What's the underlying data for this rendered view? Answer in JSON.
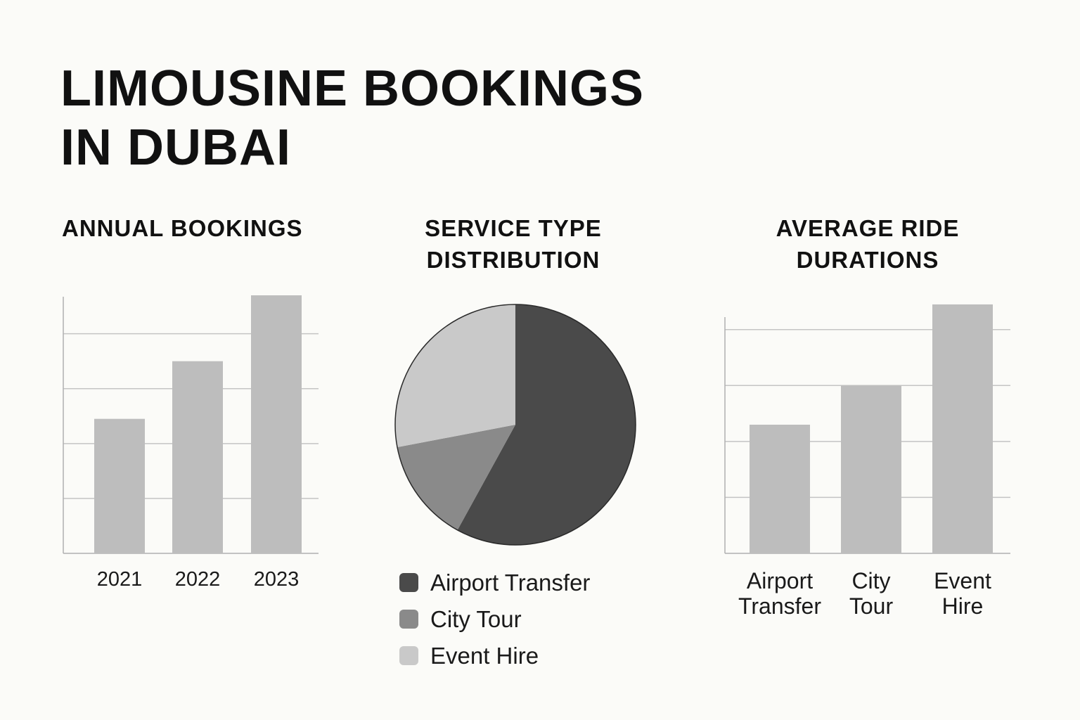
{
  "title_lines": [
    "LIMOUSINE BOOKINGS",
    "IN DUBAI"
  ],
  "colors": {
    "background": "#fbfbf8",
    "bar": "#bdbdbd",
    "grid": "#c4c4c4",
    "axis": "#b0b0b0",
    "airport_transfer": "#4a4a4a",
    "city_tour": "#8a8a8a",
    "event_hire": "#c9c9c9"
  },
  "chart_data": [
    {
      "type": "bar",
      "title_lines": [
        "ANNUAL BOOKINGS"
      ],
      "categories": [
        "2021",
        "2022",
        "2023"
      ],
      "values": [
        2.45,
        3.5,
        4.7
      ],
      "ylim": [
        0,
        4.7
      ],
      "yticks": [
        1,
        2,
        3,
        4
      ],
      "grid": true,
      "xlabel": "",
      "ylabel": ""
    },
    {
      "type": "pie",
      "title_lines": [
        "SERVICE TYPE",
        "DISTRIBUTION"
      ],
      "labels": [
        "Airport Transfer",
        "City Tour",
        "Event Hire"
      ],
      "values": [
        58,
        14,
        28
      ],
      "legend": "bottom"
    },
    {
      "type": "bar",
      "title_lines": [
        "AVERAGE RIDE",
        "DURATIONS"
      ],
      "categories": [
        [
          "Airport",
          "Transfer"
        ],
        [
          "City",
          "Tour"
        ],
        [
          "Event",
          "Hire"
        ]
      ],
      "values": [
        2.3,
        3.0,
        4.45
      ],
      "ylim": [
        0,
        4.6
      ],
      "yticks": [
        1,
        2,
        3,
        4
      ],
      "grid": true,
      "xlabel": "",
      "ylabel": ""
    }
  ]
}
